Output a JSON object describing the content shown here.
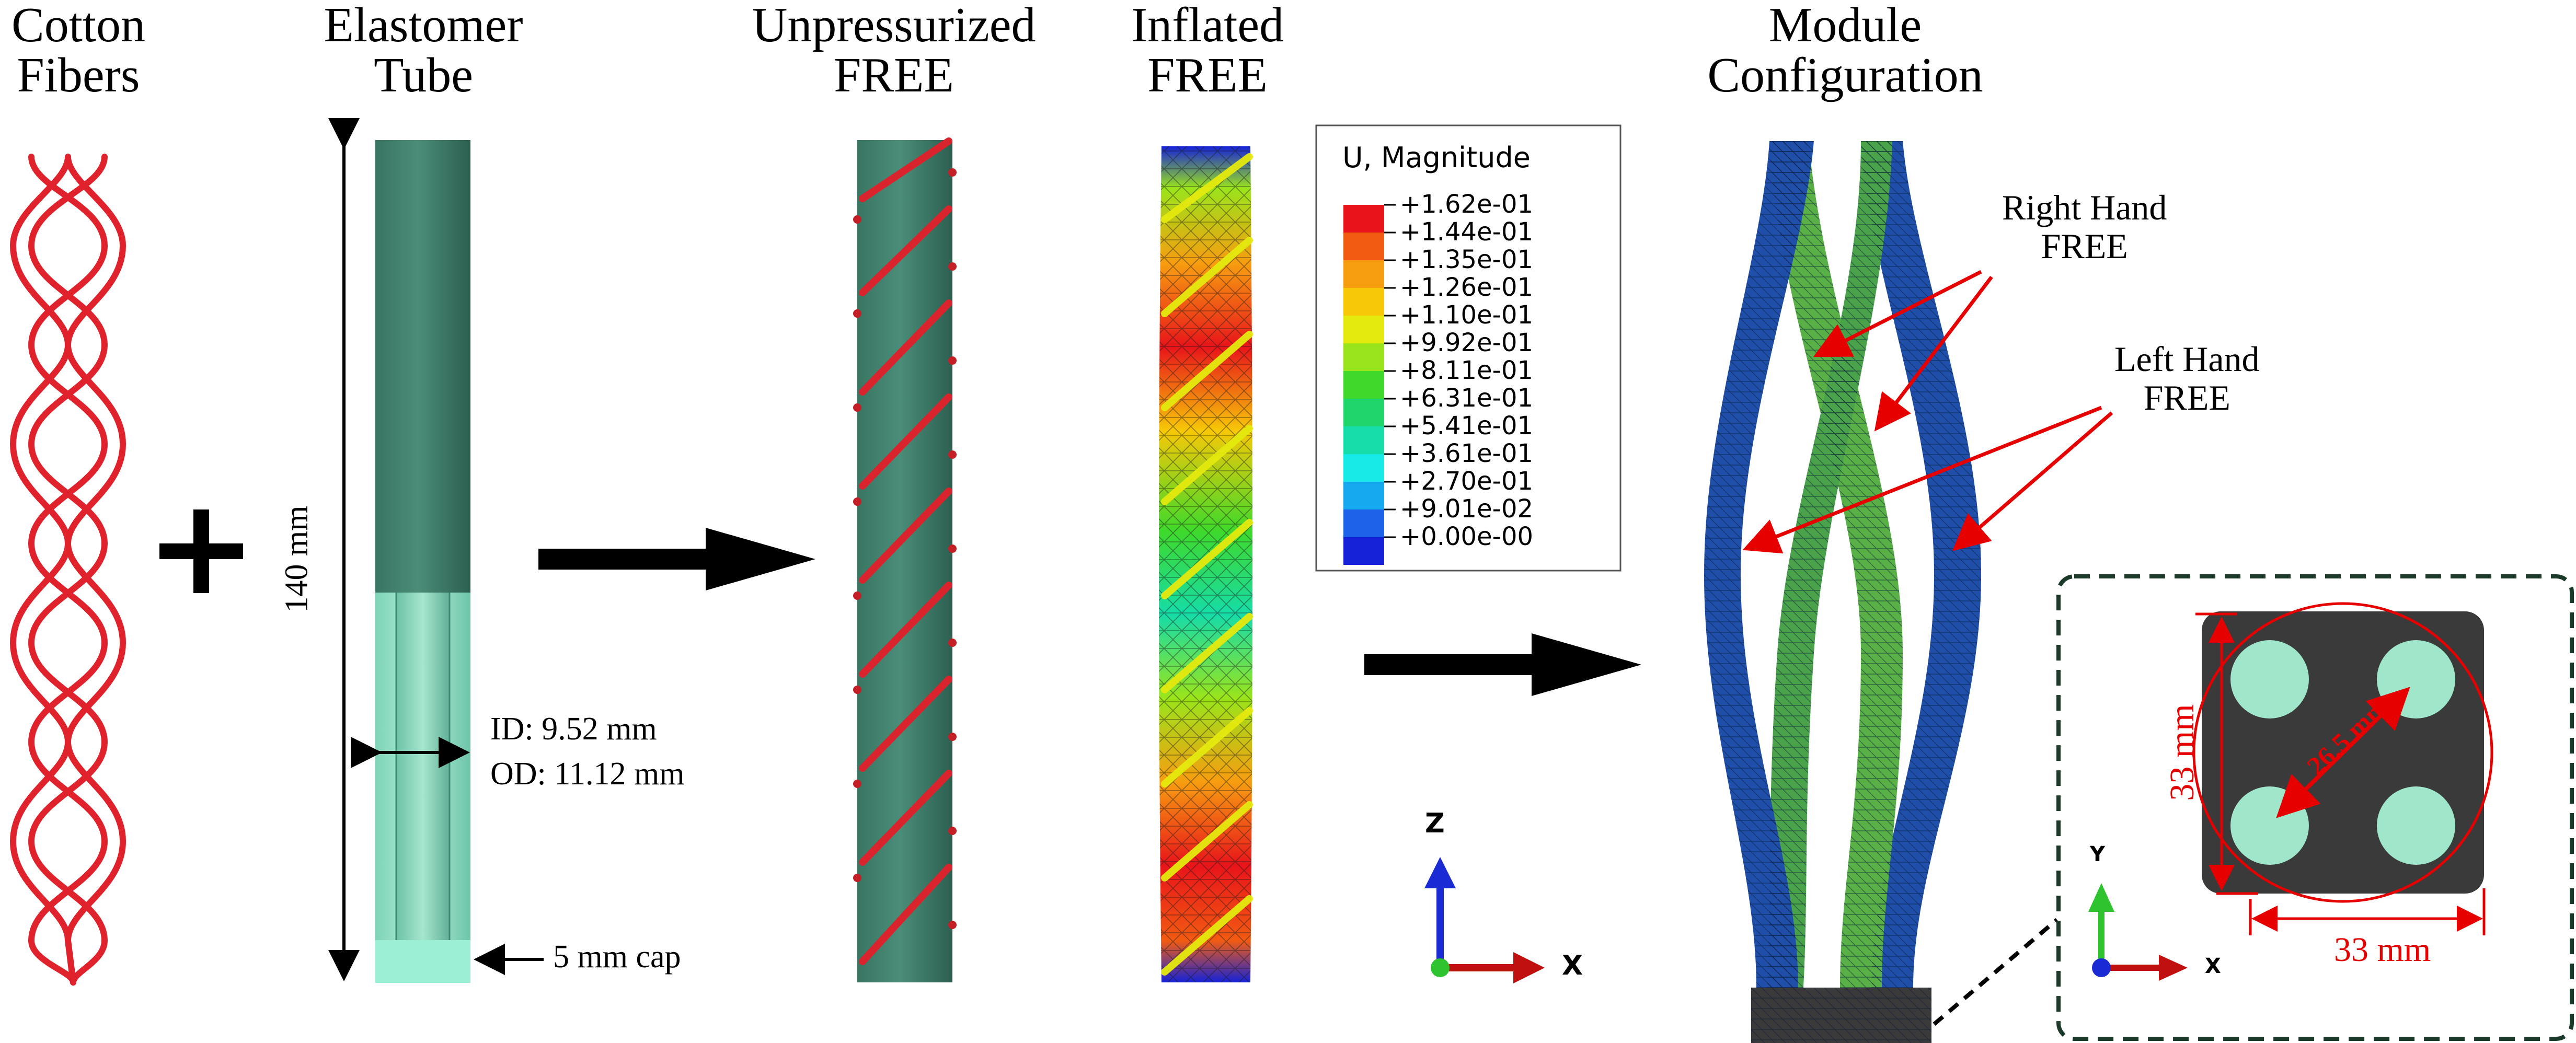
{
  "titles": {
    "cotton_line1": "Cotton",
    "cotton_line2": "Fibers",
    "tube_line1": "Elastomer",
    "tube_line2": "Tube",
    "unpress_line1": "Unpressurized",
    "unpress_line2": "FREE",
    "inflated_line1": "Inflated",
    "inflated_line2": "FREE",
    "module_line1": "Module",
    "module_line2": "Configuration"
  },
  "tube": {
    "length_label": "140 mm",
    "id_label": "ID: 9.52 mm",
    "od_label": "OD: 11.12 mm",
    "cap_label": "5 mm cap"
  },
  "legend": {
    "title": "U, Magnitude",
    "entries": [
      {
        "label": "+1.62e-01",
        "color": "#e8141a"
      },
      {
        "label": "+1.44e-01",
        "color": "#f25b12"
      },
      {
        "label": "+1.35e-01",
        "color": "#f79d10"
      },
      {
        "label": "+1.26e-01",
        "color": "#f7c808"
      },
      {
        "label": "+1.10e-01",
        "color": "#e5ea0e"
      },
      {
        "label": "+9.92e-01",
        "color": "#9ae41b"
      },
      {
        "label": "+8.11e-01",
        "color": "#3fd92b"
      },
      {
        "label": "+6.31e-01",
        "color": "#1fd66a"
      },
      {
        "label": "+5.41e-01",
        "color": "#16dca8"
      },
      {
        "label": "+3.61e-01",
        "color": "#17e9e6"
      },
      {
        "label": "+2.70e-01",
        "color": "#16a9ef"
      },
      {
        "label": "+9.01e-02",
        "color": "#1d62e8"
      },
      {
        "label": "+0.00e-00",
        "color": "#1522d8"
      }
    ]
  },
  "module": {
    "right_hand_line1": "Right Hand",
    "right_hand_line2": "FREE",
    "left_hand_line1": "Left Hand",
    "left_hand_line2": "FREE"
  },
  "axes": {
    "z_label": "Z",
    "x_label": "X",
    "y_label": "Y",
    "x2_label": "X"
  },
  "inset": {
    "height_label": "33 mm",
    "width_label": "33 mm",
    "diag_label": "26.5 mm"
  },
  "colors": {
    "fiber": "#e0222c",
    "tube_dark": "#3f7f6a",
    "tube_light": "#93ddc4",
    "arrow": "#000000",
    "annot_red": "#e60000",
    "module_blue": "#1f4fa8",
    "module_green": "#58b047",
    "inset_plate": "#3a3a3a"
  }
}
